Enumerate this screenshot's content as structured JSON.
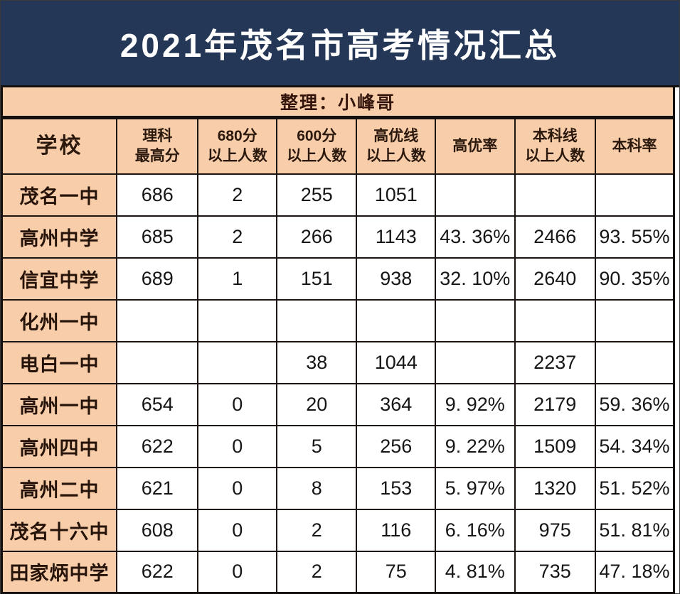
{
  "title": "2021年茂名市高考情况汇总",
  "subtitle": "整理：小峰哥",
  "colors": {
    "title_band_bg": "#253757",
    "title_text": "#ffffff",
    "row_header_bg": "#f8cda9",
    "cell_bg": "#ffffff",
    "border": "#1c1410",
    "dark_text": "#2b190e"
  },
  "table": {
    "columns": [
      [
        "学校"
      ],
      [
        "理科",
        "最高分"
      ],
      [
        "680分",
        "以上人数"
      ],
      [
        "600分",
        "以上人数"
      ],
      [
        "高优线",
        "以上人数"
      ],
      [
        "高优率"
      ],
      [
        "本科线",
        "以上人数"
      ],
      [
        "本科率"
      ]
    ],
    "col_widths": [
      "17.1%",
      "12.1%",
      "11.7%",
      "11.9%",
      "11.7%",
      "11.8%",
      "12.0%",
      "11.7%"
    ],
    "rows": [
      {
        "school": "茂名一中",
        "cells": [
          "686",
          "2",
          "255",
          "1051",
          "",
          "",
          ""
        ]
      },
      {
        "school": "高州中学",
        "cells": [
          "685",
          "2",
          "266",
          "1143",
          "43. 36%",
          "2466",
          "93. 55%"
        ]
      },
      {
        "school": "信宜中学",
        "cells": [
          "689",
          "1",
          "151",
          "938",
          "32. 10%",
          "2640",
          "90. 35%"
        ]
      },
      {
        "school": "化州一中",
        "cells": [
          "",
          "",
          "",
          "",
          "",
          "",
          ""
        ]
      },
      {
        "school": "电白一中",
        "cells": [
          "",
          "",
          "38",
          "1044",
          "",
          "2237",
          ""
        ]
      },
      {
        "school": "高州一中",
        "cells": [
          "654",
          "0",
          "20",
          "364",
          "9. 92%",
          "2179",
          "59. 36%"
        ]
      },
      {
        "school": "高州四中",
        "cells": [
          "622",
          "0",
          "5",
          "256",
          "9. 22%",
          "1509",
          "54. 34%"
        ]
      },
      {
        "school": "高州二中",
        "cells": [
          "621",
          "0",
          "8",
          "153",
          "5. 97%",
          "1320",
          "51. 52%"
        ]
      },
      {
        "school": "茂名十六中",
        "cells": [
          "608",
          "0",
          "2",
          "116",
          "6. 16%",
          "975",
          "51. 81%"
        ]
      },
      {
        "school": "田家炳中学",
        "cells": [
          "622",
          "0",
          "2",
          "75",
          "4. 81%",
          "735",
          "47. 18%"
        ]
      }
    ]
  },
  "chart_data": {
    "type": "table",
    "title": "2021年茂名市高考情况汇总",
    "subtitle": "整理：小峰哥",
    "columns": [
      "学校",
      "理科最高分",
      "680分以上人数",
      "600分以上人数",
      "高优线以上人数",
      "高优率",
      "本科线以上人数",
      "本科率"
    ],
    "rows": [
      [
        "茂名一中",
        686,
        2,
        255,
        1051,
        "",
        "",
        ""
      ],
      [
        "高州中学",
        685,
        2,
        266,
        1143,
        "43.36%",
        2466,
        "93.55%"
      ],
      [
        "信宜中学",
        689,
        1,
        151,
        938,
        "32.10%",
        2640,
        "90.35%"
      ],
      [
        "化州一中",
        "",
        "",
        "",
        "",
        "",
        "",
        ""
      ],
      [
        "电白一中",
        "",
        "",
        38,
        1044,
        "",
        2237,
        ""
      ],
      [
        "高州一中",
        654,
        0,
        20,
        364,
        "9.92%",
        2179,
        "59.36%"
      ],
      [
        "高州四中",
        622,
        0,
        5,
        256,
        "9.22%",
        1509,
        "54.34%"
      ],
      [
        "高州二中",
        621,
        0,
        8,
        153,
        "5.97%",
        1320,
        "51.52%"
      ],
      [
        "茂名十六中",
        608,
        0,
        2,
        116,
        "6.16%",
        975,
        "51.81%"
      ],
      [
        "田家炳中学",
        622,
        0,
        2,
        75,
        "4.81%",
        735,
        "47.18%"
      ]
    ]
  }
}
